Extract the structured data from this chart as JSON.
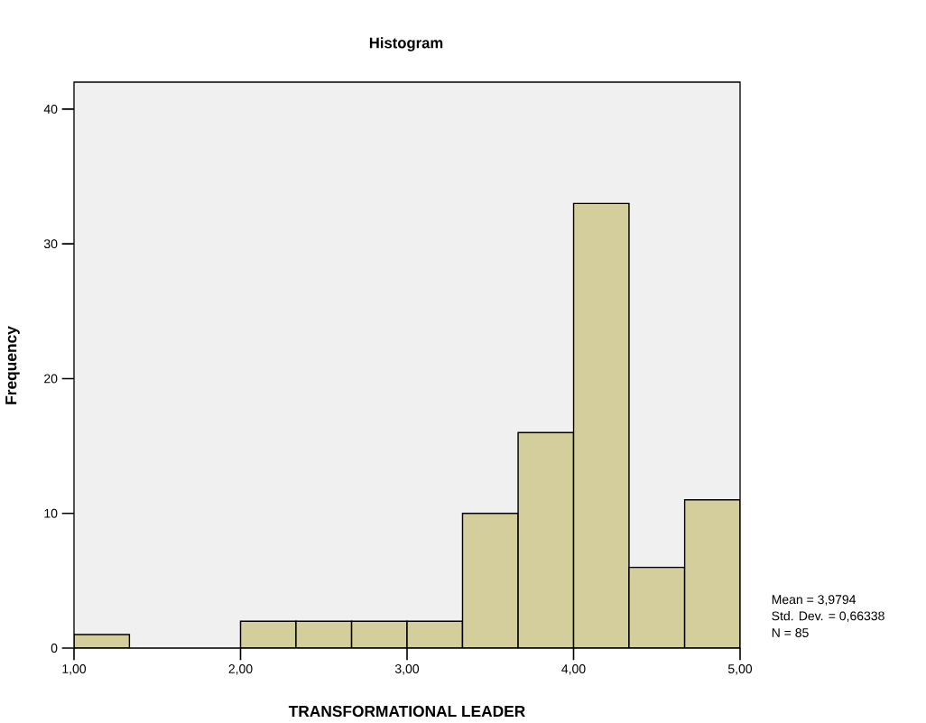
{
  "chart_data": {
    "type": "histogram",
    "title": "Histogram",
    "xlabel": "TRANSFORMATIONAL LEADER",
    "ylabel": "Frequency",
    "bins": [
      1.0,
      1.333,
      1.667,
      2.0,
      2.333,
      2.667,
      3.0,
      3.333,
      3.667,
      4.0,
      4.333,
      4.667,
      5.0
    ],
    "values": [
      1,
      0,
      0,
      2,
      2,
      2,
      2,
      10,
      16,
      33,
      6,
      11
    ],
    "color": "#d3ce9b",
    "xlim": [
      1,
      5
    ],
    "ylim": [
      0,
      42
    ],
    "xticks": [
      {
        "value": 1,
        "label": "1,00"
      },
      {
        "value": 2,
        "label": "2,00"
      },
      {
        "value": 3,
        "label": "3,00"
      },
      {
        "value": 4,
        "label": "4,00"
      },
      {
        "value": 5,
        "label": "5,00"
      }
    ],
    "yticks": [
      0,
      10,
      20,
      30,
      40
    ],
    "annotations": [
      "Mean = 3,9794",
      "Std. Dev. = 0,66338",
      "N = 85"
    ]
  }
}
